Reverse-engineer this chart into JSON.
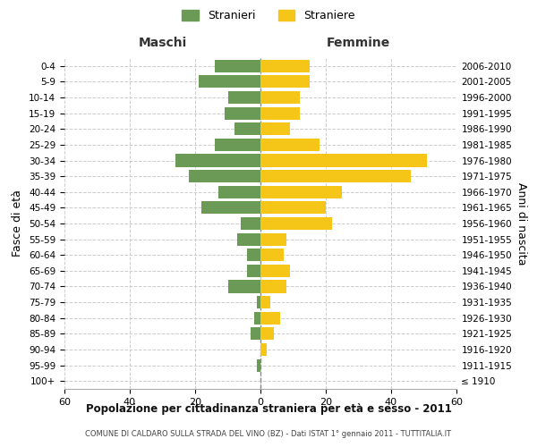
{
  "age_groups": [
    "100+",
    "95-99",
    "90-94",
    "85-89",
    "80-84",
    "75-79",
    "70-74",
    "65-69",
    "60-64",
    "55-59",
    "50-54",
    "45-49",
    "40-44",
    "35-39",
    "30-34",
    "25-29",
    "20-24",
    "15-19",
    "10-14",
    "5-9",
    "0-4"
  ],
  "birth_years": [
    "≤ 1910",
    "1911-1915",
    "1916-1920",
    "1921-1925",
    "1926-1930",
    "1931-1935",
    "1936-1940",
    "1941-1945",
    "1946-1950",
    "1951-1955",
    "1956-1960",
    "1961-1965",
    "1966-1970",
    "1971-1975",
    "1976-1980",
    "1981-1985",
    "1986-1990",
    "1991-1995",
    "1996-2000",
    "2001-2005",
    "2006-2010"
  ],
  "maschi": [
    0,
    1,
    0,
    3,
    2,
    1,
    10,
    4,
    4,
    7,
    6,
    18,
    13,
    22,
    26,
    14,
    8,
    11,
    10,
    19,
    14
  ],
  "femmine": [
    0,
    0,
    2,
    4,
    6,
    3,
    8,
    9,
    7,
    8,
    22,
    20,
    25,
    46,
    51,
    18,
    9,
    12,
    12,
    15,
    15
  ],
  "maschi_color": "#6a9a56",
  "femmine_color": "#f5c518",
  "background_color": "#ffffff",
  "grid_color": "#cccccc",
  "title": "Popolazione per cittadinanza straniera per età e sesso - 2011",
  "subtitle": "COMUNE DI CALDARO SULLA STRADA DEL VINO (BZ) - Dati ISTAT 1° gennaio 2011 - TUTTITALIA.IT",
  "xlabel_left": "Maschi",
  "xlabel_right": "Femmine",
  "ylabel_left": "Fasce di età",
  "ylabel_right": "Anni di nascita",
  "legend_maschi": "Stranieri",
  "legend_femmine": "Straniere",
  "xlim": 60,
  "bar_height": 0.8
}
